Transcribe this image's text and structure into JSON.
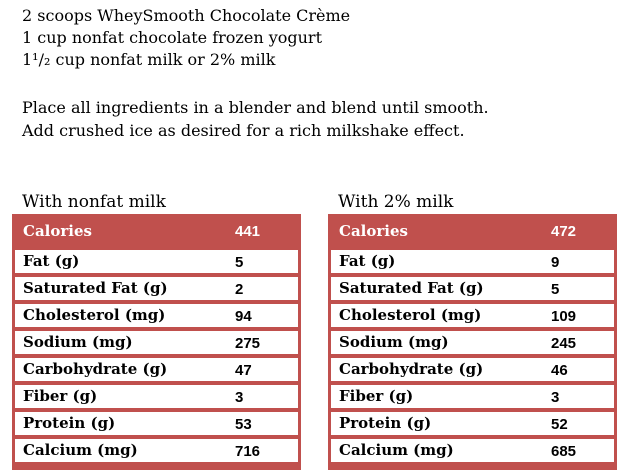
{
  "recipe": {
    "ingredients": [
      "2 scoops WheySmooth Chocolate Crème",
      "1 cup nonfat chocolate frozen yogurt",
      "1¹/₂ cup nonfat milk or 2% milk"
    ],
    "instructions": [
      "Place all ingredients in a blender and blend until smooth.",
      "Add crushed ice as desired for a rich milkshake effect."
    ]
  },
  "tables": [
    {
      "title": "With nonfat milk",
      "header": {
        "label": "Calories",
        "value": "441"
      },
      "rows": [
        {
          "label": "Fat (g)",
          "value": "5"
        },
        {
          "label": "Saturated Fat (g)",
          "value": "2"
        },
        {
          "label": "Cholesterol (mg)",
          "value": "94"
        },
        {
          "label": "Sodium (mg)",
          "value": "275"
        },
        {
          "label": "Carbohydrate (g)",
          "value": "47"
        },
        {
          "label": "Fiber (g)",
          "value": "3"
        },
        {
          "label": "Protein (g)",
          "value": "53"
        },
        {
          "label": "Calcium (mg)",
          "value": "716"
        }
      ]
    },
    {
      "title": "With 2% milk",
      "header": {
        "label": "Calories",
        "value": "472"
      },
      "rows": [
        {
          "label": "Fat (g)",
          "value": "9"
        },
        {
          "label": "Saturated Fat (g)",
          "value": "5"
        },
        {
          "label": "Cholesterol (mg)",
          "value": "109"
        },
        {
          "label": "Sodium (mg)",
          "value": "245"
        },
        {
          "label": "Carbohydrate (g)",
          "value": "46"
        },
        {
          "label": "Fiber (g)",
          "value": "3"
        },
        {
          "label": "Protein (g)",
          "value": "52"
        },
        {
          "label": "Calcium (mg)",
          "value": "685"
        }
      ]
    }
  ],
  "colors": {
    "accent_red": "#C0504D",
    "row_bg": "#FFFFFF",
    "header_text": "#FFFFFF",
    "body_text": "#000000"
  }
}
